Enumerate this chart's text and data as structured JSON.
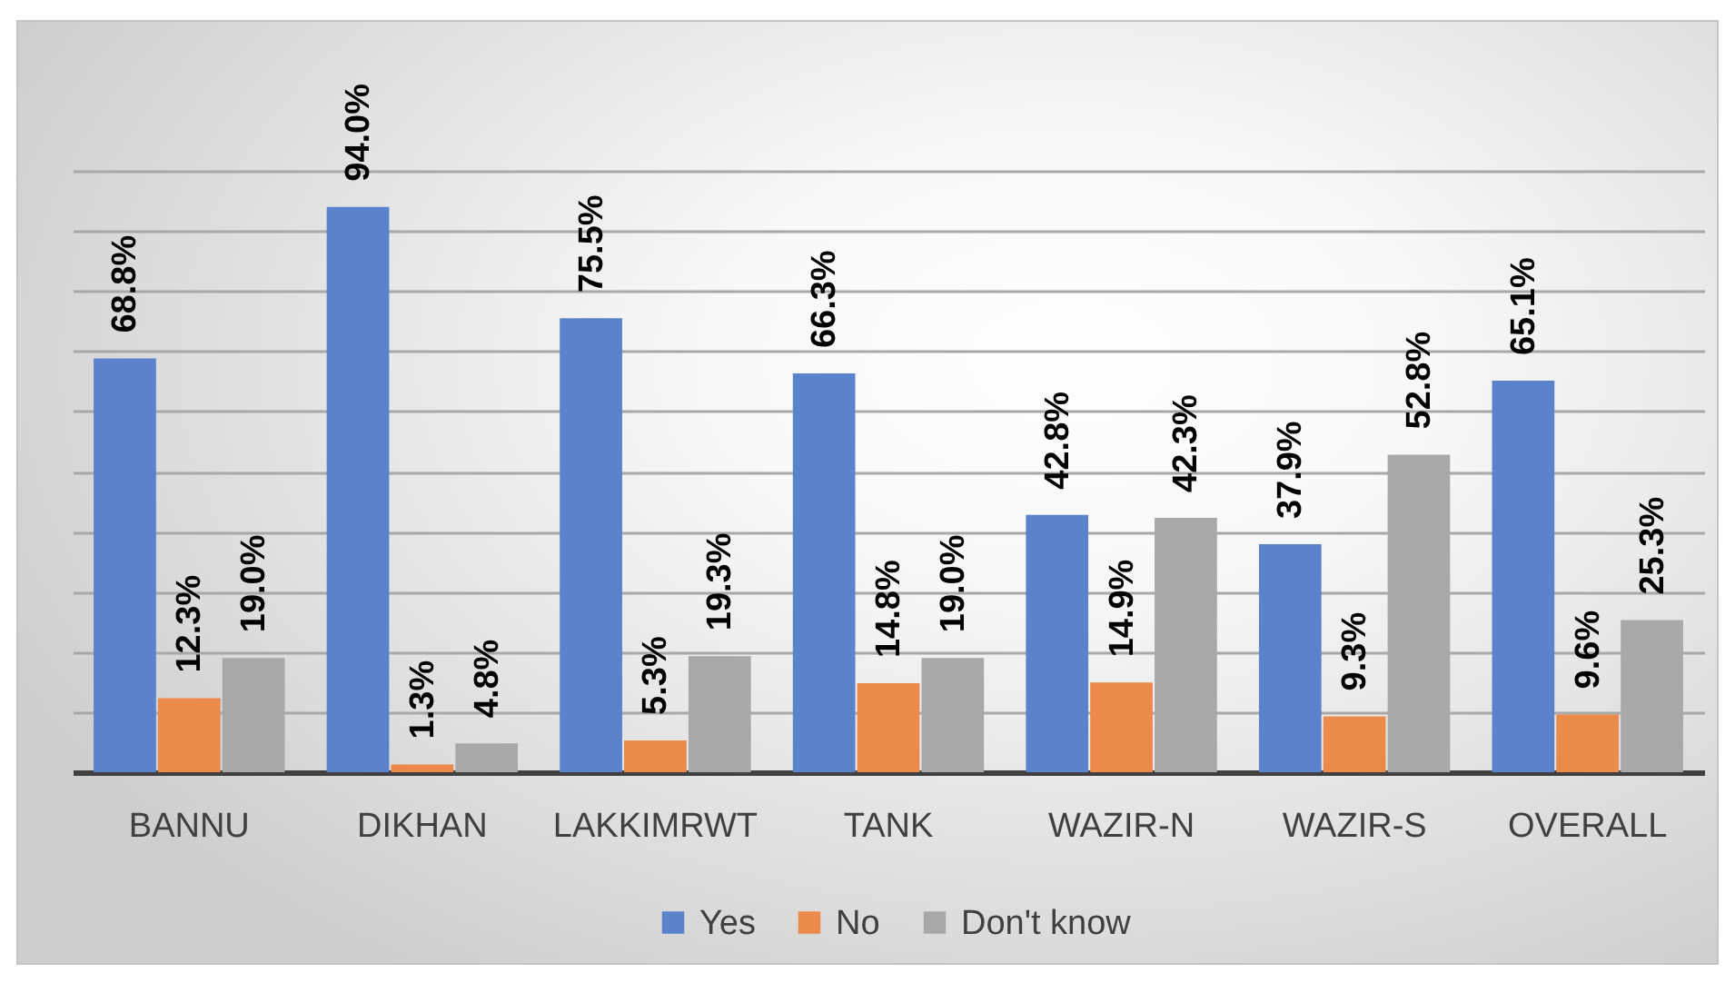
{
  "chart_data": {
    "type": "bar",
    "categories": [
      "BANNU",
      "DIKHAN",
      "LAKKIMRWT",
      "TANK",
      "WAZIR-N",
      "WAZIR-S",
      "OVERALL"
    ],
    "series": [
      {
        "name": "Yes",
        "color": "#5a83cc",
        "values": [
          68.8,
          94.0,
          75.5,
          66.3,
          42.8,
          37.9,
          65.1
        ],
        "value_labels": [
          "68.8%",
          "94.0%",
          "75.5%",
          "66.3%",
          "42.8%",
          "37.9%",
          "65.1%"
        ]
      },
      {
        "name": "No",
        "color": "#eb8a4b",
        "values": [
          12.3,
          1.3,
          5.3,
          14.8,
          14.9,
          9.3,
          9.6
        ],
        "value_labels": [
          "12.3%",
          "1.3%",
          "5.3%",
          "14.8%",
          "14.9%",
          "9.3%",
          "9.6%"
        ]
      },
      {
        "name": "Don't know",
        "color": "#a8a8a8",
        "values": [
          19.0,
          4.8,
          19.3,
          19.0,
          42.3,
          52.8,
          25.3
        ],
        "value_labels": [
          "19.0%",
          "4.8%",
          "19.3%",
          "19.0%",
          "42.3%",
          "52.8%",
          "25.3%"
        ]
      }
    ],
    "ylim": [
      0,
      100
    ],
    "yticks": [
      {
        "value": 0,
        "label": null
      },
      {
        "value": 10,
        "label": null
      },
      {
        "value": 20,
        "label": null
      },
      {
        "value": 30,
        "label": null
      },
      {
        "value": 40,
        "label": null
      },
      {
        "value": 50,
        "label": null
      },
      {
        "value": 60,
        "label": null
      },
      {
        "value": 70,
        "label": null
      },
      {
        "value": 80,
        "label": null
      },
      {
        "value": 90,
        "label": null
      },
      {
        "value": 100,
        "label": null
      }
    ],
    "grid": "y",
    "legend": "bottom",
    "tick_labels": "x"
  }
}
